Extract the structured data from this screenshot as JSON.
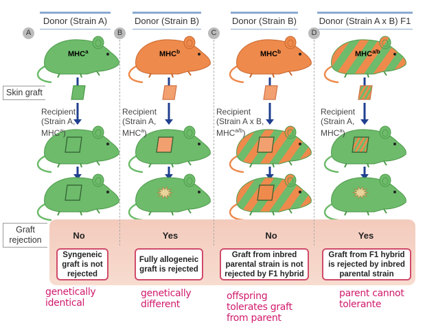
{
  "columns": [
    {
      "letter": "A",
      "donor": "Donor (Strain A)",
      "mhc_base": "MHC",
      "mhc_sup": "a",
      "donor_color": "green",
      "recipient_color": "green",
      "recipient": [
        "Recipient",
        "(Strain A,",
        "MHC"
      ],
      "recipient_sup": "a",
      "rejection": "No",
      "note": "Syngeneic graft is not rejected",
      "handwritten": [
        "genetically",
        "identical"
      ],
      "graft_outcome": "accepted"
    },
    {
      "letter": "B",
      "donor": "Donor (Strain B)",
      "mhc_base": "MHC",
      "mhc_sup": "b",
      "donor_color": "orange",
      "recipient_color": "green",
      "recipient": [
        "Recipient",
        "(Strain A,",
        "MHC"
      ],
      "recipient_sup": "a",
      "rejection": "Yes",
      "note": "Fully allogeneic graft is rejected",
      "handwritten": [
        "genetically",
        "different"
      ],
      "graft_outcome": "rejected"
    },
    {
      "letter": "C",
      "donor": "Donor (Strain B)",
      "mhc_base": "MHC",
      "mhc_sup": "b",
      "donor_color": "orange",
      "recipient_color": "striped",
      "recipient": [
        "Recipient",
        "(Strain A x B,",
        "MHC"
      ],
      "recipient_sup": "a/b",
      "rejection": "No",
      "note": "Graft from inbred parental strain is not rejected by F1 hybrid",
      "handwritten": [
        "offspring",
        "tolerates graft",
        "from parent"
      ],
      "graft_outcome": "accepted"
    },
    {
      "letter": "D",
      "donor": "Donor (Strain A x B) F1",
      "mhc_base": "MHC",
      "mhc_sup": "a/b",
      "donor_color": "striped",
      "recipient_color": "green",
      "recipient": [
        "Recipient",
        "(Strain A,",
        "MHC"
      ],
      "recipient_sup": "a",
      "rejection": "Yes",
      "note": "Graft from F1 hybrid is rejected by inbred parental strain",
      "handwritten": [
        "parent cannot",
        "tolerante"
      ],
      "graft_outcome": "rejected"
    }
  ],
  "labels": {
    "skin_graft": "Skin graft",
    "graft_rejection": [
      "Graft",
      "rejection"
    ]
  },
  "colors": {
    "green": "#6dbb6b",
    "orange": "#ee8a4c",
    "arrow": "#1f3f8f",
    "note_border": "#d04a6a",
    "handwriting": "#d0196c",
    "rejection_bg": "#f3cbbd"
  }
}
